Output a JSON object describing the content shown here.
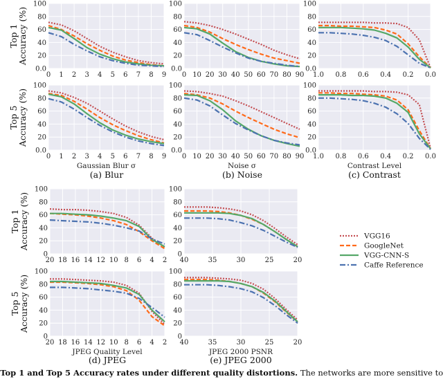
{
  "figure": {
    "rows": [
      {
        "top1_label": "Top 1",
        "top5_label": "Top 5",
        "ylabel": "Accuracy (%)"
      },
      {
        "top1_label": "Top 1",
        "top5_label": "Top 5",
        "ylabel": "Accuracy (%)"
      }
    ],
    "panel_captions": [
      "(a) Blur",
      "(b) Noise",
      "(c) Contrast",
      "(d) JPEG",
      "(e) JPEG 2000"
    ],
    "caption_bold": ": Top 1 and Top 5 Accuracy rates under different quality distortions.",
    "caption_rest": " The networks are more sensitive to d"
  },
  "styles": {
    "plot_background": "#eaeaf2",
    "grid_color": "#ffffff",
    "series": [
      {
        "name": "VGG16",
        "color": "#c44e52",
        "dash": "dotted"
      },
      {
        "name": "GoogleNet",
        "color": "#ff6a1a",
        "dash": "dashed"
      },
      {
        "name": "VGG-CNN-S",
        "color": "#55a868",
        "dash": "solid"
      },
      {
        "name": "Caffe Reference",
        "color": "#4c72b0",
        "dash": "dash-dot"
      }
    ]
  },
  "legend": {
    "placement": "right",
    "entries": [
      "VGG16",
      "GoogleNet",
      "VGG-CNN-S",
      "Caffe Reference"
    ]
  },
  "chart_data": [
    {
      "panel": "Blur",
      "metric": "Top 1",
      "type": "line",
      "xlabel": "",
      "ylabel": "Accuracy (%)",
      "x": [
        0,
        1,
        2,
        3,
        4,
        5,
        6,
        7,
        8,
        9
      ],
      "xlim": [
        0,
        9
      ],
      "xticks": [
        "0",
        "1",
        "2",
        "3",
        "4",
        "5",
        "6",
        "7",
        "8",
        "9"
      ],
      "ylim": [
        0,
        100
      ],
      "yticks": [
        "0.0",
        "20",
        "40",
        "60",
        "80",
        "100"
      ],
      "grid": true,
      "series": [
        {
          "name": "VGG16",
          "values": [
            71,
            67,
            58,
            46,
            34,
            25,
            18,
            12,
            9,
            7
          ]
        },
        {
          "name": "GoogleNet",
          "values": [
            66,
            60,
            50,
            38,
            28,
            19,
            13,
            9,
            6,
            4
          ]
        },
        {
          "name": "VGG-CNN-S",
          "values": [
            63,
            59,
            46,
            32,
            22,
            15,
            10,
            7,
            5,
            4
          ]
        },
        {
          "name": "Caffe Reference",
          "values": [
            55,
            49,
            37,
            27,
            18,
            12,
            8,
            5,
            4,
            3
          ]
        }
      ]
    },
    {
      "panel": "Noise",
      "metric": "Top 1",
      "type": "line",
      "xlabel": "",
      "ylabel": "",
      "x": [
        0,
        10,
        20,
        30,
        40,
        50,
        60,
        70,
        80,
        90
      ],
      "xlim": [
        0,
        90
      ],
      "xticks": [
        "0",
        "10",
        "20",
        "30",
        "40",
        "50",
        "60",
        "70",
        "80",
        "90"
      ],
      "ylim": [
        0,
        100
      ],
      "yticks": [
        "0.0",
        "20",
        "40",
        "60",
        "80",
        "100"
      ],
      "grid": true,
      "series": [
        {
          "name": "VGG16",
          "values": [
            72,
            70,
            66,
            60,
            53,
            45,
            37,
            28,
            21,
            15
          ]
        },
        {
          "name": "GoogleNet",
          "values": [
            66,
            63,
            56,
            46,
            37,
            29,
            22,
            16,
            12,
            8
          ]
        },
        {
          "name": "VGG-CNN-S",
          "values": [
            63,
            61,
            53,
            39,
            26,
            17,
            11,
            7,
            4,
            3
          ]
        },
        {
          "name": "Caffe Reference",
          "values": [
            55,
            52,
            43,
            33,
            24,
            16,
            11,
            8,
            5,
            3
          ]
        }
      ]
    },
    {
      "panel": "Contrast",
      "metric": "Top 1",
      "type": "line",
      "xlabel": "",
      "ylabel": "",
      "x": [
        1.0,
        0.9,
        0.8,
        0.7,
        0.6,
        0.5,
        0.4,
        0.3,
        0.2,
        0.1,
        0.0
      ],
      "xlim": [
        1.0,
        0.0
      ],
      "xticks": [
        "1.0",
        "0.8",
        "0.6",
        "0.4",
        "0.2",
        "0.0"
      ],
      "ylim": [
        0,
        100
      ],
      "yticks": [
        "0.0",
        "20",
        "40",
        "60",
        "80",
        "100"
      ],
      "grid": true,
      "series": [
        {
          "name": "VGG16",
          "values": [
            71,
            71,
            71,
            71,
            71,
            70,
            70,
            69,
            63,
            44,
            1
          ]
        },
        {
          "name": "GoogleNet",
          "values": [
            66,
            66,
            65,
            65,
            64,
            63,
            59,
            53,
            38,
            18,
            1
          ]
        },
        {
          "name": "VGG-CNN-S",
          "values": [
            63,
            63,
            63,
            62,
            61,
            59,
            54,
            47,
            33,
            14,
            1
          ]
        },
        {
          "name": "Caffe Reference",
          "values": [
            55,
            55,
            54,
            53,
            51,
            48,
            43,
            34,
            21,
            8,
            1
          ]
        }
      ]
    },
    {
      "panel": "Blur",
      "metric": "Top 5",
      "type": "line",
      "xlabel": "Gaussian Blur σ",
      "ylabel": "Accuracy (%)",
      "x": [
        0,
        1,
        2,
        3,
        4,
        5,
        6,
        7,
        8,
        9
      ],
      "xlim": [
        0,
        9
      ],
      "xticks": [
        "0",
        "1",
        "2",
        "3",
        "4",
        "5",
        "6",
        "7",
        "8",
        "9"
      ],
      "ylim": [
        0,
        100
      ],
      "yticks": [
        "0.0",
        "20",
        "40",
        "60",
        "80",
        "100"
      ],
      "grid": true,
      "series": [
        {
          "name": "VGG16",
          "values": [
            91,
            88,
            81,
            72,
            60,
            48,
            37,
            28,
            21,
            16
          ]
        },
        {
          "name": "GoogleNet",
          "values": [
            87,
            84,
            75,
            63,
            50,
            39,
            30,
            22,
            16,
            11
          ]
        },
        {
          "name": "VGG-CNN-S",
          "values": [
            86,
            82,
            71,
            56,
            42,
            31,
            23,
            17,
            13,
            10
          ]
        },
        {
          "name": "Caffe Reference",
          "values": [
            79,
            74,
            63,
            50,
            38,
            28,
            20,
            14,
            10,
            7
          ]
        }
      ]
    },
    {
      "panel": "Noise",
      "metric": "Top 5",
      "type": "line",
      "xlabel": "Noise σ",
      "ylabel": "",
      "x": [
        0,
        10,
        20,
        30,
        40,
        50,
        60,
        70,
        80,
        90
      ],
      "xlim": [
        0,
        90
      ],
      "xticks": [
        "0",
        "10",
        "20",
        "30",
        "40",
        "50",
        "60",
        "70",
        "80",
        "90"
      ],
      "ylim": [
        0,
        100
      ],
      "yticks": [
        "0.0",
        "20",
        "40",
        "60",
        "80",
        "100"
      ],
      "grid": true,
      "series": [
        {
          "name": "VGG16",
          "values": [
            91,
            90,
            87,
            83,
            76,
            68,
            59,
            50,
            41,
            32
          ]
        },
        {
          "name": "GoogleNet",
          "values": [
            87,
            85,
            80,
            71,
            60,
            50,
            41,
            32,
            25,
            19
          ]
        },
        {
          "name": "VGG-CNN-S",
          "values": [
            85,
            84,
            76,
            62,
            45,
            32,
            22,
            15,
            10,
            6
          ]
        },
        {
          "name": "Caffe Reference",
          "values": [
            80,
            77,
            68,
            54,
            41,
            31,
            22,
            15,
            11,
            8
          ]
        }
      ]
    },
    {
      "panel": "Contrast",
      "metric": "Top 5",
      "type": "line",
      "xlabel": "Contrast Level",
      "ylabel": "",
      "x": [
        1.0,
        0.9,
        0.8,
        0.7,
        0.6,
        0.5,
        0.4,
        0.3,
        0.2,
        0.1,
        0.0
      ],
      "xlim": [
        1.0,
        0.0
      ],
      "xticks": [
        "1.0",
        "0.8",
        "0.6",
        "0.4",
        "0.2",
        "0.0"
      ],
      "ylim": [
        0,
        100
      ],
      "yticks": [
        "0.0",
        "20",
        "40",
        "60",
        "80",
        "100"
      ],
      "grid": true,
      "series": [
        {
          "name": "VGG16",
          "values": [
            91,
            91,
            91,
            91,
            91,
            90,
            90,
            89,
            85,
            70,
            3
          ]
        },
        {
          "name": "GoogleNet",
          "values": [
            88,
            88,
            87,
            87,
            86,
            85,
            83,
            77,
            62,
            30,
            2
          ]
        },
        {
          "name": "VGG-CNN-S",
          "values": [
            85,
            85,
            85,
            84,
            84,
            83,
            80,
            72,
            58,
            25,
            2
          ]
        },
        {
          "name": "Caffe Reference",
          "values": [
            80,
            80,
            79,
            78,
            76,
            72,
            66,
            56,
            41,
            18,
            1
          ]
        }
      ]
    },
    {
      "panel": "JPEG",
      "metric": "Top 1",
      "type": "line",
      "xlabel": "",
      "ylabel": "Accuracy (%)",
      "x": [
        20,
        18,
        16,
        14,
        12,
        10,
        8,
        6,
        4,
        2
      ],
      "xlim": [
        20,
        2
      ],
      "xticks": [
        "20",
        "18",
        "16",
        "14",
        "12",
        "10",
        "8",
        "6",
        "4",
        "2"
      ],
      "ylim": [
        0,
        100
      ],
      "yticks": [
        "0",
        "20",
        "40",
        "60",
        "80",
        "100"
      ],
      "grid": true,
      "series": [
        {
          "name": "VGG16",
          "values": [
            69,
            68,
            68,
            67,
            65,
            62,
            56,
            44,
            24,
            10
          ]
        },
        {
          "name": "GoogleNet",
          "values": [
            62,
            61,
            60,
            58,
            55,
            51,
            45,
            34,
            20,
            8
          ]
        },
        {
          "name": "VGG-CNN-S",
          "values": [
            62,
            62,
            61,
            60,
            58,
            55,
            51,
            42,
            22,
            11
          ]
        },
        {
          "name": "Caffe Reference",
          "values": [
            52,
            51,
            50,
            49,
            47,
            44,
            40,
            35,
            23,
            15
          ]
        }
      ]
    },
    {
      "panel": "JPEG 2000",
      "metric": "Top 1",
      "type": "line",
      "xlabel": "",
      "ylabel": "",
      "x": [
        40,
        38,
        36,
        34,
        32,
        30,
        28,
        26,
        24,
        22,
        20
      ],
      "xlim": [
        40,
        20
      ],
      "xticks": [
        "40",
        "35",
        "30",
        "25",
        "20"
      ],
      "ylim": [
        0,
        100
      ],
      "yticks": [
        "0",
        "20",
        "40",
        "60",
        "80",
        "100"
      ],
      "grid": true,
      "series": [
        {
          "name": "VGG16",
          "values": [
            72,
            72,
            72,
            71,
            69,
            66,
            60,
            51,
            39,
            26,
            14
          ]
        },
        {
          "name": "GoogleNet",
          "values": [
            66,
            66,
            66,
            65,
            63,
            59,
            53,
            45,
            34,
            22,
            11
          ]
        },
        {
          "name": "VGG-CNN-S",
          "values": [
            63,
            63,
            63,
            63,
            62,
            59,
            54,
            45,
            34,
            22,
            11
          ]
        },
        {
          "name": "Caffe Reference",
          "values": [
            55,
            55,
            55,
            54,
            52,
            48,
            43,
            36,
            27,
            18,
            10
          ]
        }
      ]
    },
    {
      "panel": "JPEG",
      "metric": "Top 5",
      "type": "line",
      "xlabel": "JPEG Quality Level",
      "ylabel": "Accuracy (%)",
      "x": [
        20,
        18,
        16,
        14,
        12,
        10,
        8,
        6,
        4,
        2
      ],
      "xlim": [
        20,
        2
      ],
      "xticks": [
        "20",
        "18",
        "16",
        "14",
        "12",
        "10",
        "8",
        "6",
        "4",
        "2"
      ],
      "ylim": [
        0,
        100
      ],
      "yticks": [
        "0",
        "20",
        "40",
        "60",
        "80",
        "100"
      ],
      "grid": true,
      "series": [
        {
          "name": "VGG16",
          "values": [
            88,
            88,
            87,
            86,
            85,
            83,
            78,
            66,
            38,
            18
          ]
        },
        {
          "name": "GoogleNet",
          "values": [
            83,
            83,
            82,
            81,
            79,
            76,
            70,
            55,
            30,
            16
          ]
        },
        {
          "name": "VGG-CNN-S",
          "values": [
            84,
            84,
            83,
            82,
            81,
            78,
            74,
            64,
            40,
            22
          ]
        },
        {
          "name": "Caffe Reference",
          "values": [
            75,
            75,
            74,
            73,
            71,
            69,
            66,
            58,
            44,
            29
          ]
        }
      ]
    },
    {
      "panel": "JPEG 2000",
      "metric": "Top 5",
      "type": "line",
      "xlabel": "JPEG 2000 PSNR",
      "ylabel": "",
      "x": [
        40,
        38,
        36,
        34,
        32,
        30,
        28,
        26,
        24,
        22,
        20
      ],
      "xlim": [
        40,
        20
      ],
      "xticks": [
        "40",
        "35",
        "30",
        "25",
        "20"
      ],
      "ylim": [
        0,
        100
      ],
      "yticks": [
        "0",
        "20",
        "40",
        "60",
        "80",
        "100"
      ],
      "grid": true,
      "series": [
        {
          "name": "VGG16",
          "values": [
            90,
            90,
            90,
            89,
            88,
            86,
            81,
            72,
            58,
            41,
            25
          ]
        },
        {
          "name": "GoogleNet",
          "values": [
            87,
            87,
            87,
            86,
            84,
            81,
            76,
            66,
            53,
            37,
            22
          ]
        },
        {
          "name": "VGG-CNN-S",
          "values": [
            85,
            85,
            85,
            85,
            84,
            81,
            76,
            67,
            54,
            38,
            22
          ]
        },
        {
          "name": "Caffe Reference",
          "values": [
            79,
            79,
            79,
            78,
            76,
            73,
            68,
            59,
            47,
            33,
            20
          ]
        }
      ]
    }
  ]
}
